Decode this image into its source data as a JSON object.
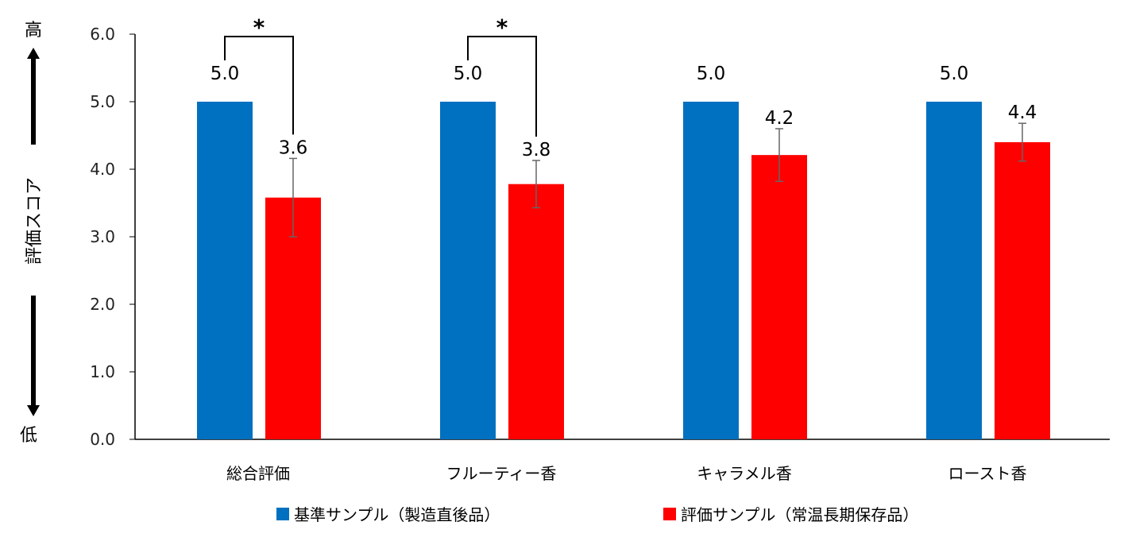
{
  "chart_data": {
    "type": "bar",
    "title": "",
    "xlabel": "",
    "ylabel": "評価スコア",
    "ylabel_high": "高",
    "ylabel_low": "低",
    "ylim": [
      0,
      6
    ],
    "yticks": [
      "0.0",
      "1.0",
      "2.0",
      "3.0",
      "4.0",
      "5.0",
      "6.0"
    ],
    "grid": false,
    "legend_position": "bottom",
    "categories": [
      "総合評価",
      "フルーティー香",
      "キャラメル香",
      "ロースト香"
    ],
    "series": [
      {
        "name": "基準サンプル（製造直後品）",
        "color": "#0070C0",
        "values": [
          5.0,
          5.0,
          5.0,
          5.0
        ],
        "labels": [
          "5.0",
          "5.0",
          "5.0",
          "5.0"
        ],
        "errors": [
          0,
          0,
          0,
          0
        ]
      },
      {
        "name": "評価サンプル（常温長期保存品）",
        "color": "#FF0000",
        "values": [
          3.58,
          3.78,
          4.21,
          4.4
        ],
        "labels": [
          "3.6",
          "3.8",
          "4.2",
          "4.4"
        ],
        "errors": [
          0.58,
          0.35,
          0.39,
          0.28
        ]
      }
    ],
    "significance": [
      {
        "category_index": 0,
        "mark": "*"
      },
      {
        "category_index": 1,
        "mark": "*"
      }
    ]
  }
}
